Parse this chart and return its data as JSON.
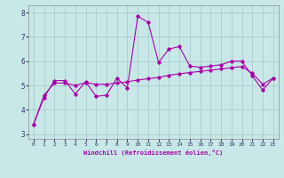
{
  "xlabel": "Windchill (Refroidissement éolien,°C)",
  "xlim": [
    -0.5,
    23.5
  ],
  "ylim": [
    2.8,
    8.3
  ],
  "yticks": [
    3,
    4,
    5,
    6,
    7,
    8
  ],
  "xticks": [
    0,
    1,
    2,
    3,
    4,
    5,
    6,
    7,
    8,
    9,
    10,
    11,
    12,
    13,
    14,
    15,
    16,
    17,
    18,
    19,
    20,
    21,
    22,
    23
  ],
  "bg_color": "#c8e8e8",
  "line_color": "#aa00aa",
  "grid_color": "#aacccc",
  "lines": [
    {
      "x": [
        0,
        1,
        2,
        3,
        4,
        5,
        6,
        7,
        8,
        9,
        10,
        11,
        12,
        13,
        14,
        15,
        16,
        17,
        18,
        19,
        20,
        21,
        22,
        23
      ],
      "y": [
        3.4,
        4.5,
        5.2,
        5.2,
        4.65,
        5.15,
        4.55,
        4.6,
        5.3,
        4.9,
        7.85,
        7.6,
        5.95,
        6.5,
        6.6,
        5.8,
        5.75,
        5.8,
        5.85,
        6.0,
        6.0,
        5.4,
        4.8,
        5.3
      ]
    },
    {
      "x": [
        0,
        1,
        2,
        3,
        4,
        5,
        6,
        7,
        8,
        9,
        10,
        11,
        12,
        13,
        14,
        15,
        16,
        17,
        18,
        19,
        20,
        21,
        22,
        23
      ],
      "y": [
        3.4,
        4.6,
        5.1,
        5.1,
        5.0,
        5.12,
        5.05,
        5.05,
        5.1,
        5.15,
        5.22,
        5.28,
        5.33,
        5.42,
        5.48,
        5.53,
        5.58,
        5.63,
        5.68,
        5.73,
        5.78,
        5.5,
        5.05,
        5.3
      ]
    }
  ]
}
